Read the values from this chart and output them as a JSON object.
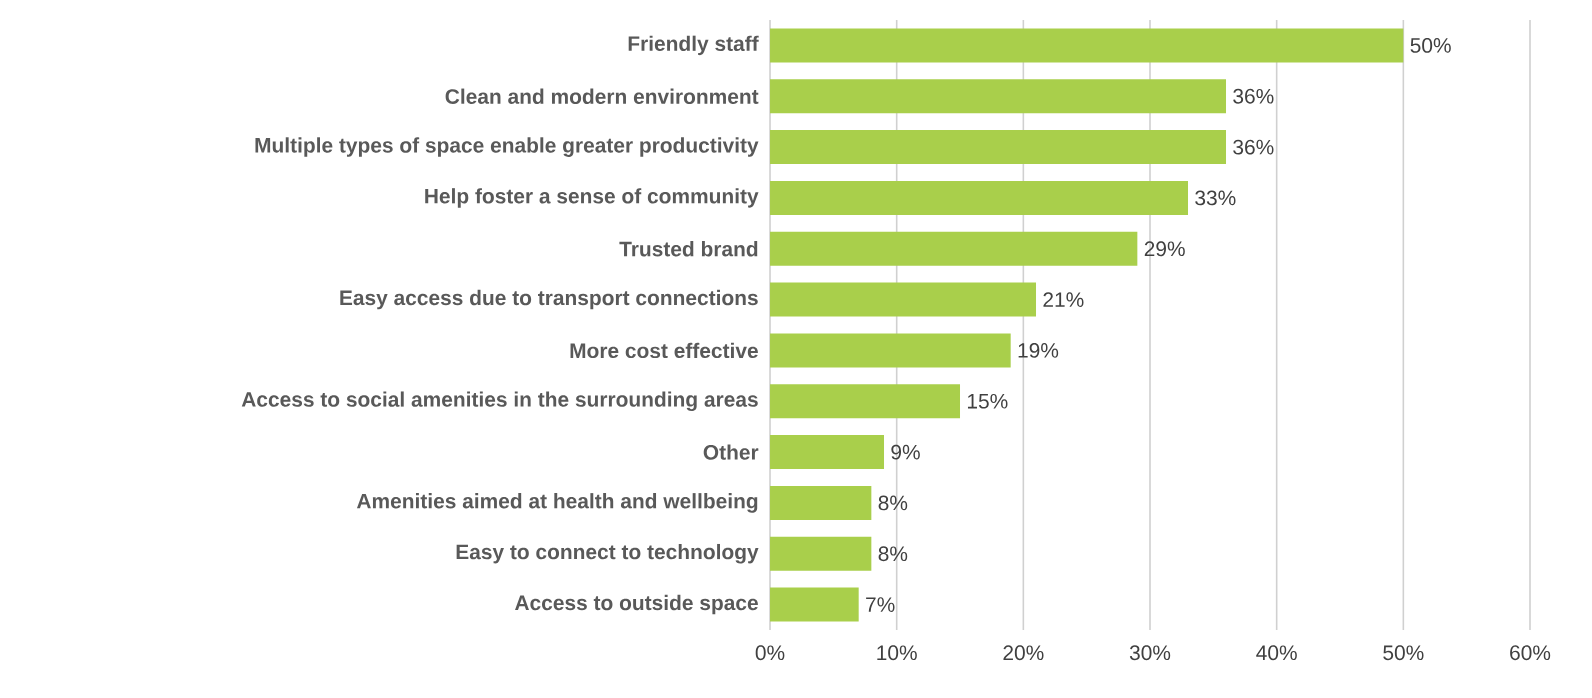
{
  "chart_data": {
    "type": "bar",
    "orientation": "horizontal",
    "categories": [
      "Friendly staff",
      "Clean and modern environment",
      "Multiple types of space enable greater productivity",
      "Help foster a sense of community",
      "Trusted brand",
      "Easy access due to transport connections",
      "More cost effective",
      "Access to social amenities in the surrounding areas",
      "Other",
      "Amenities aimed at health and wellbeing",
      "Easy to connect to technology",
      "Access to outside space"
    ],
    "values": [
      50,
      36,
      36,
      33,
      29,
      21,
      19,
      15,
      9,
      8,
      8,
      7
    ],
    "value_labels": [
      "50%",
      "36%",
      "36%",
      "33%",
      "29%",
      "21%",
      "19%",
      "15%",
      "9%",
      "8%",
      "8%",
      "7%"
    ],
    "color": "#a9cf4b",
    "xlim": [
      0,
      60
    ],
    "xticks": [
      {
        "value": 0,
        "label": "0%"
      },
      {
        "value": 10,
        "label": "10%"
      },
      {
        "value": 20,
        "label": "20%"
      },
      {
        "value": 30,
        "label": "30%"
      },
      {
        "value": 40,
        "label": "40%"
      },
      {
        "value": 50,
        "label": "50%"
      },
      {
        "value": 60,
        "label": "60%"
      }
    ],
    "grid": "x"
  }
}
